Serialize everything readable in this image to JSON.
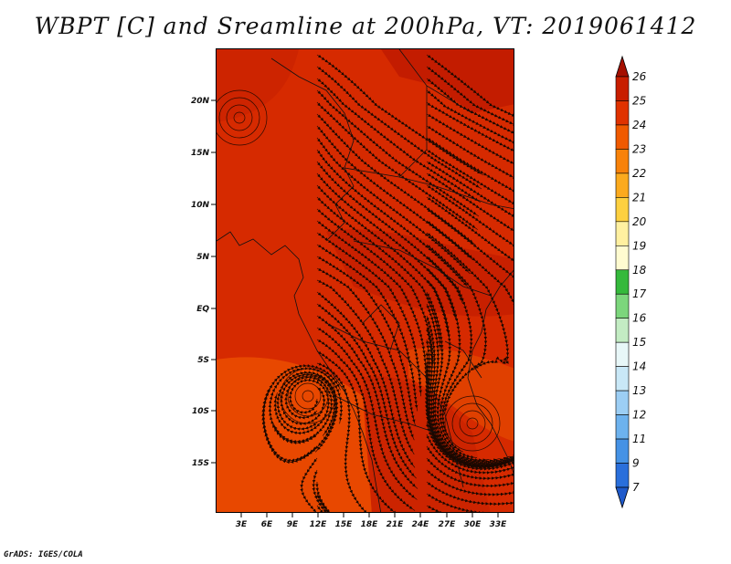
{
  "title": "WBPT [C] and Sreamline at 200hPa, VT: 2019061412",
  "credit": "GrADS: IGES/COLA",
  "map": {
    "lat_labels": [
      "20N",
      "15N",
      "10N",
      "5N",
      "EQ",
      "5S",
      "10S",
      "15S"
    ],
    "lon_labels": [
      "3E",
      "6E",
      "9E",
      "12E",
      "15E",
      "18E",
      "21E",
      "24E",
      "27E",
      "30E",
      "33E"
    ],
    "field_colors": {
      "dark": "#c41f00",
      "mid": "#d82b00",
      "light": "#ea4c00"
    }
  },
  "colorbar": {
    "labels": [
      "26",
      "25",
      "24",
      "23",
      "22",
      "21",
      "20",
      "19",
      "18",
      "17",
      "16",
      "15",
      "14",
      "13",
      "12",
      "11",
      "9",
      "7"
    ],
    "colors": [
      "#a50f00",
      "#c81e00",
      "#e03200",
      "#f05a00",
      "#f8820a",
      "#fbaa1e",
      "#fdd040",
      "#fff0a0",
      "#fffbd0",
      "#35b93c",
      "#7cd67c",
      "#c3ecc3",
      "#e8f7f8",
      "#c9e8f7",
      "#9ccef4",
      "#6db2ee",
      "#4592e5",
      "#2a6fdb",
      "#1f5acb"
    ]
  }
}
